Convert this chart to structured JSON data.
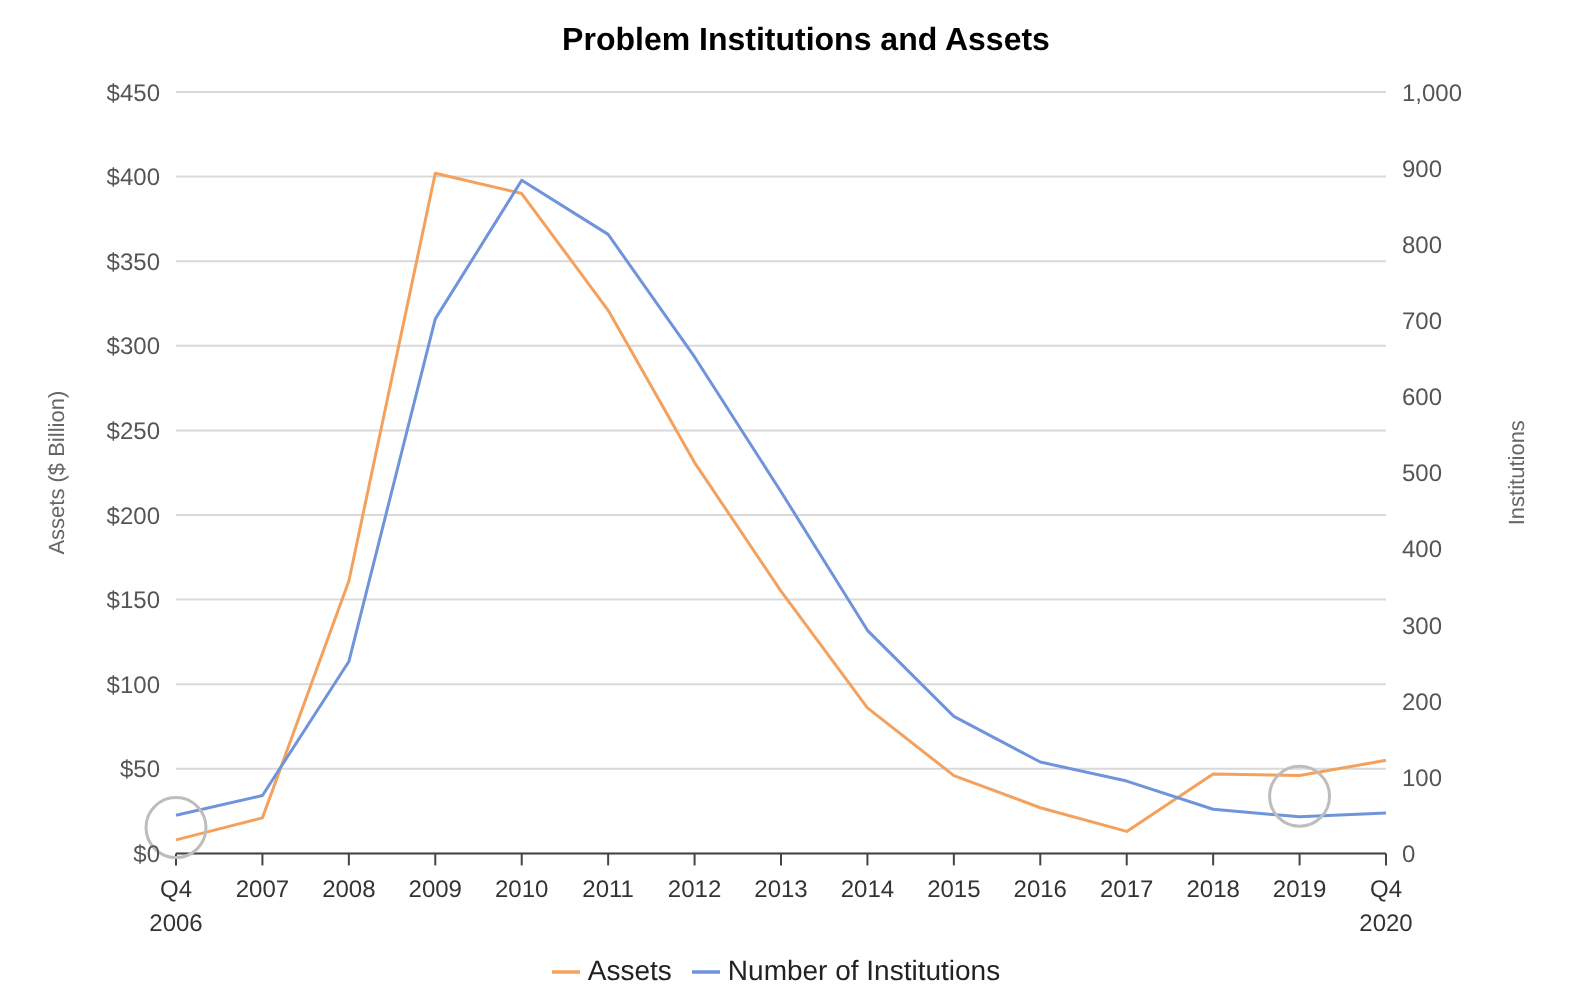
{
  "chart_data": {
    "type": "line",
    "title": "Problem Institutions and Assets",
    "ylabel": "Assets ($ Billion)",
    "y2label": "Institutions",
    "categories": [
      "Q4 2006",
      "2007",
      "2008",
      "2009",
      "2010",
      "2011",
      "2012",
      "2013",
      "2014",
      "2015",
      "2016",
      "2017",
      "2018",
      "2019",
      "Q4 2020"
    ],
    "series": [
      {
        "name": "Assets",
        "color": "#f4a15d",
        "values": [
          8,
          21,
          161,
          402,
          390,
          321,
          231,
          155,
          86,
          46,
          27,
          13,
          47,
          46,
          55
        ]
      },
      {
        "name": "Number of Institutions",
        "color": "#7094dc",
        "axis": "y2",
        "values": [
          50,
          76,
          252,
          702,
          884,
          813,
          652,
          475,
          293,
          180,
          120,
          95,
          58,
          48,
          53
        ]
      }
    ],
    "ylim": [
      0,
      450
    ],
    "yticks": [
      {
        "value": 0,
        "label": "$0"
      },
      {
        "value": 50,
        "label": "$50"
      },
      {
        "value": 100,
        "label": "$100"
      },
      {
        "value": 150,
        "label": "$150"
      },
      {
        "value": 200,
        "label": "$200"
      },
      {
        "value": 250,
        "label": "$250"
      },
      {
        "value": 300,
        "label": "$300"
      },
      {
        "value": 350,
        "label": "$350"
      },
      {
        "value": 400,
        "label": "$400"
      },
      {
        "value": 450,
        "label": "$450"
      }
    ],
    "y2lim": [
      0,
      1000
    ],
    "y2ticks": [
      0,
      100,
      200,
      300,
      400,
      500,
      600,
      700,
      800,
      900,
      {
        "value": 1000,
        "label": "1,000"
      }
    ],
    "grid": "y",
    "legend": "bottom",
    "marker": "none",
    "line_style": "solid"
  }
}
